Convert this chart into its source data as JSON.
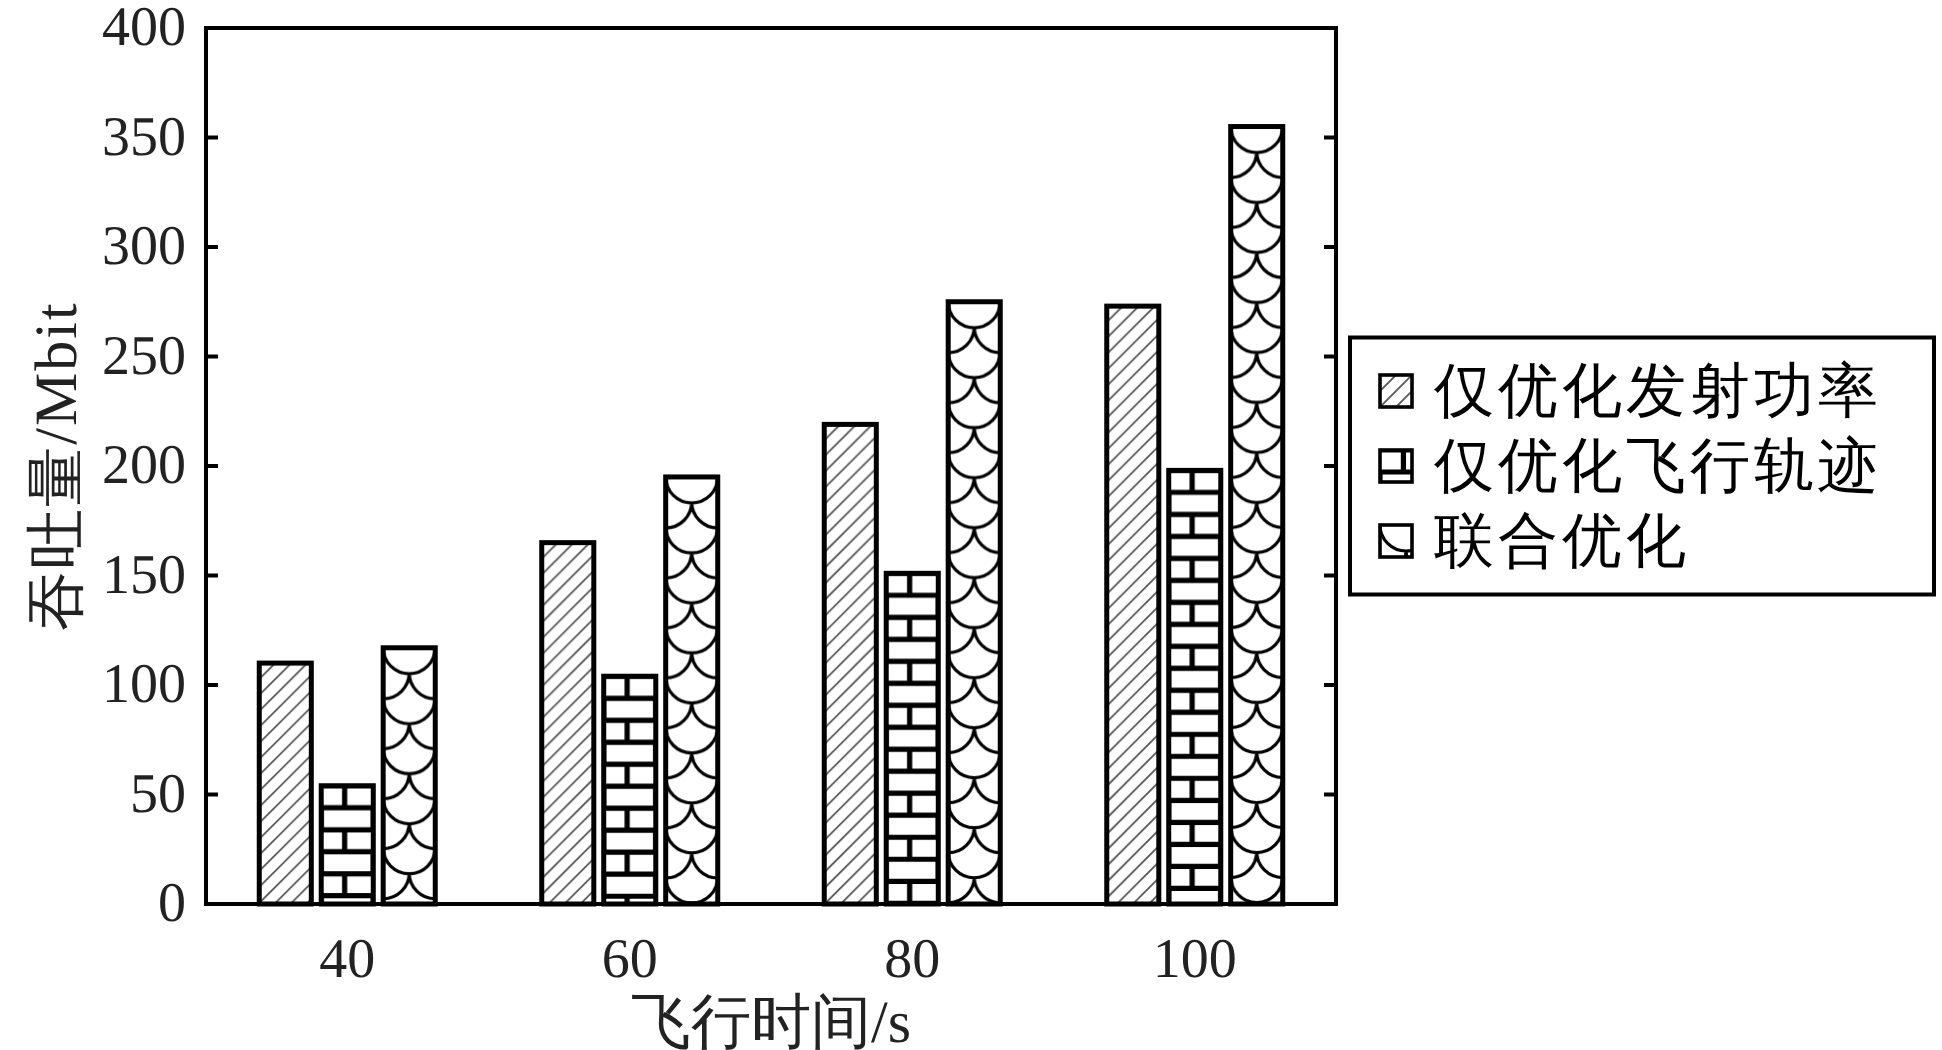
{
  "chart_data": {
    "type": "bar",
    "xlabel": "飞行时间/s",
    "ylabel": "吞吐量/Mbit",
    "categories": [
      "40",
      "60",
      "80",
      "100"
    ],
    "series": [
      {
        "name": "仅优化发射功率",
        "color": "#000000",
        "values": [
          110,
          165,
          219,
          273
        ]
      },
      {
        "name": "仅优化飞行轨迹",
        "color": "#000000",
        "values": [
          54,
          104,
          151,
          198
        ]
      },
      {
        "name": "联合优化",
        "color": "#000000",
        "values": [
          117,
          195,
          275,
          355
        ]
      }
    ],
    "ylim": [
      0,
      400
    ],
    "yticks": [
      0,
      50,
      100,
      150,
      200,
      250,
      300,
      350,
      400
    ],
    "legend": "right"
  }
}
